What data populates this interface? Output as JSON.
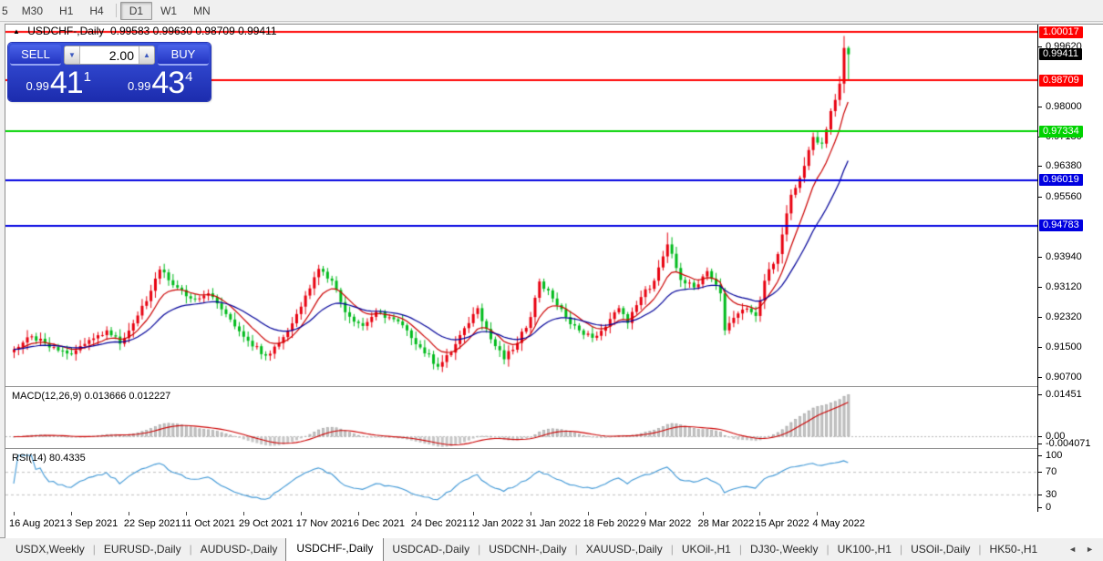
{
  "toolbar": {
    "timeframes": [
      "5",
      "M30",
      "H1",
      "H4",
      "D1",
      "W1",
      "MN"
    ],
    "active": "D1"
  },
  "chart": {
    "collapse_icon": "▲",
    "symbol_title": "USDCHF-,Daily",
    "ohlc_title": "0.99583 0.99630 0.98709 0.99411",
    "trade_panel": {
      "sell_label": "SELL",
      "buy_label": "BUY",
      "volume": "2.00",
      "sell_price_small": "0.99",
      "sell_price_big": "41",
      "sell_price_sup": "1",
      "buy_price_small": "0.99",
      "buy_price_big": "43",
      "buy_price_sup": "4"
    },
    "current_price": {
      "v": 0.99411,
      "label": "0.99411",
      "bg": "#000000"
    },
    "levels": [
      {
        "v": 1.00017,
        "label": "1.00017",
        "color": "#ff0000"
      },
      {
        "v": 0.98709,
        "label": "0.98709",
        "color": "#ff0000"
      },
      {
        "v": 0.97334,
        "label": "0.97334",
        "color": "#00d200"
      },
      {
        "v": 0.96019,
        "label": "0.96019",
        "color": "#0000e0"
      },
      {
        "v": 0.94783,
        "label": "0.94783",
        "color": "#0000e0"
      }
    ],
    "axis_ticks": [
      {
        "v": 0.9962,
        "label": "0.99620"
      },
      {
        "v": 0.98,
        "label": "0.98000"
      },
      {
        "v": 0.9718,
        "label": "0.97180"
      },
      {
        "v": 0.9638,
        "label": "0.96380"
      },
      {
        "v": 0.9556,
        "label": "0.95560"
      },
      {
        "v": 0.9394,
        "label": "0.93940"
      },
      {
        "v": 0.9312,
        "label": "0.93120"
      },
      {
        "v": 0.9232,
        "label": "0.92320"
      },
      {
        "v": 0.915,
        "label": "0.91500"
      },
      {
        "v": 0.907,
        "label": "0.90700"
      }
    ]
  },
  "macd": {
    "name": "MACD(12,26,9)",
    "values": "0.013666 0.012227",
    "axis": [
      {
        "v": 0.01451,
        "label": "0.01451"
      },
      {
        "v": 0,
        "label": "0.00"
      },
      {
        "v": -0.004071,
        "label": "-0.004071"
      }
    ]
  },
  "rsi": {
    "name": "RSI(14)",
    "value": "80.4335",
    "axis": [
      {
        "v": 100,
        "label": "100"
      },
      {
        "v": 70,
        "label": "70"
      },
      {
        "v": 30,
        "label": "30"
      },
      {
        "v": 0,
        "label": "0"
      }
    ]
  },
  "date_axis": {
    "labels": [
      "16 Aug 2021",
      "3 Sep 2021",
      "22 Sep 2021",
      "11 Oct 2021",
      "29 Oct 2021",
      "17 Nov 2021",
      "6 Dec 2021",
      "24 Dec 2021",
      "12 Jan 2022",
      "31 Jan 2022",
      "18 Feb 2022",
      "9 Mar 2022",
      "28 Mar 2022",
      "15 Apr 2022",
      "4 May 2022"
    ]
  },
  "tabs": {
    "items": [
      "USDX,Weekly",
      "EURUSD-,Daily",
      "AUDUSD-,Daily",
      "USDCHF-,Daily",
      "USDCAD-,Daily",
      "USDCNH-,Daily",
      "XAUUSD-,Daily",
      "UKOil-,H1",
      "DJ30-,Weekly",
      "UK100-,H1",
      "USOil-,Daily",
      "HK50-,H1"
    ],
    "active": "USDCHF-,Daily",
    "scroll_left": "◄",
    "scroll_right": "►"
  },
  "chart_data": {
    "type": "candlestick",
    "symbol": "USDCHF",
    "timeframe": "Daily",
    "last_candle": {
      "open": 0.99583,
      "high": 0.9963,
      "low": 0.98709,
      "close": 0.99411
    },
    "candle_count": 190,
    "close_anchors": [
      [
        0,
        0.9145
      ],
      [
        4,
        0.918
      ],
      [
        8,
        0.915
      ],
      [
        13,
        0.9132
      ],
      [
        17,
        0.917
      ],
      [
        21,
        0.9196
      ],
      [
        24,
        0.916
      ],
      [
        27,
        0.9215
      ],
      [
        30,
        0.9275
      ],
      [
        33,
        0.936
      ],
      [
        36,
        0.9318
      ],
      [
        40,
        0.9282
      ],
      [
        44,
        0.9296
      ],
      [
        48,
        0.924
      ],
      [
        53,
        0.9168
      ],
      [
        57,
        0.9128
      ],
      [
        60,
        0.9162
      ],
      [
        63,
        0.9215
      ],
      [
        66,
        0.929
      ],
      [
        69,
        0.9362
      ],
      [
        72,
        0.933
      ],
      [
        75,
        0.9245
      ],
      [
        79,
        0.9208
      ],
      [
        82,
        0.9246
      ],
      [
        86,
        0.9226
      ],
      [
        89,
        0.9196
      ],
      [
        92,
        0.915
      ],
      [
        96,
        0.9098
      ],
      [
        99,
        0.9136
      ],
      [
        102,
        0.9202
      ],
      [
        105,
        0.9256
      ],
      [
        108,
        0.9172
      ],
      [
        111,
        0.9118
      ],
      [
        114,
        0.9162
      ],
      [
        117,
        0.9232
      ],
      [
        119,
        0.9328
      ],
      [
        122,
        0.9282
      ],
      [
        125,
        0.9232
      ],
      [
        128,
        0.9196
      ],
      [
        131,
        0.9176
      ],
      [
        134,
        0.9206
      ],
      [
        137,
        0.9256
      ],
      [
        139,
        0.9216
      ],
      [
        142,
        0.9286
      ],
      [
        145,
        0.933
      ],
      [
        148,
        0.9428
      ],
      [
        151,
        0.9332
      ],
      [
        154,
        0.9312
      ],
      [
        157,
        0.9356
      ],
      [
        160,
        0.9296
      ],
      [
        161,
        0.9196
      ],
      [
        163,
        0.923
      ],
      [
        166,
        0.9255
      ],
      [
        168,
        0.9235
      ],
      [
        170,
        0.933
      ],
      [
        173,
        0.9402
      ],
      [
        176,
        0.9562
      ],
      [
        179,
        0.964
      ],
      [
        181,
        0.9718
      ],
      [
        183,
        0.97
      ],
      [
        185,
        0.9788
      ],
      [
        187,
        0.9862
      ],
      [
        188,
        0.99583
      ],
      [
        189,
        0.99411
      ]
    ],
    "spike_high": {
      "index": 148,
      "high": 0.946
    },
    "horizontal_levels": [
      1.00017,
      0.98709,
      0.97334,
      0.96019,
      0.94783
    ],
    "y_axis": {
      "top_price": 1.00189,
      "bottom_price": 0.9043
    },
    "ma_periods": {
      "fast": 9,
      "slow": 22
    },
    "macd_params": [
      12,
      26,
      9
    ],
    "macd_current": [
      0.013666,
      0.012227
    ],
    "macd_axis": {
      "max": 0.01451,
      "min": -0.004071
    },
    "rsi_period": 14,
    "rsi_current": 80.4335,
    "rsi_grid": [
      70,
      30
    ],
    "colors": {
      "bull": "#e8000f",
      "bear": "#00bb1c",
      "ma_fast": "#cc0000",
      "ma_slow": "#000099",
      "macd_hist": "#c6c6c6",
      "macd_signal": "#cc0000",
      "rsi_line": "#3e97d6",
      "level_red": "#ff0000",
      "level_green": "#00d200",
      "level_blue": "#0000e0"
    }
  }
}
